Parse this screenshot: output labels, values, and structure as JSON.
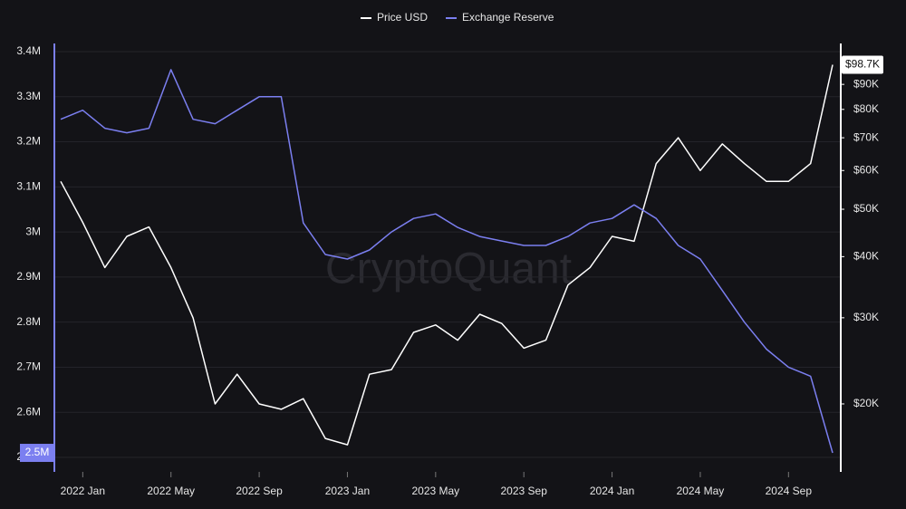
{
  "chart_data": {
    "type": "line",
    "watermark": "CryptoQuant",
    "grid": true,
    "x": [
      "2021-12",
      "2022-01",
      "2022-02",
      "2022-03",
      "2022-04",
      "2022-05",
      "2022-06",
      "2022-07",
      "2022-08",
      "2022-09",
      "2022-10",
      "2022-11",
      "2022-12",
      "2023-01",
      "2023-02",
      "2023-03",
      "2023-04",
      "2023-05",
      "2023-06",
      "2023-07",
      "2023-08",
      "2023-09",
      "2023-10",
      "2023-11",
      "2023-12",
      "2024-01",
      "2024-02",
      "2024-03",
      "2024-04",
      "2024-05",
      "2024-06",
      "2024-07",
      "2024-08",
      "2024-09",
      "2024-10",
      "2024-11"
    ],
    "xlim": [
      "2021-12",
      "2024-11"
    ],
    "xticks": [
      {
        "value": "2022-01",
        "label": "2022 Jan"
      },
      {
        "value": "2022-05",
        "label": "2022 May"
      },
      {
        "value": "2022-09",
        "label": "2022 Sep"
      },
      {
        "value": "2023-01",
        "label": "2023 Jan"
      },
      {
        "value": "2023-05",
        "label": "2023 May"
      },
      {
        "value": "2023-09",
        "label": "2023 Sep"
      },
      {
        "value": "2024-01",
        "label": "2024 Jan"
      },
      {
        "value": "2024-05",
        "label": "2024 May"
      },
      {
        "value": "2024-09",
        "label": "2024 Sep"
      }
    ],
    "ylim": [
      2.5,
      3.4
    ],
    "yticks": [
      {
        "value": 2.5,
        "label": "2.5M"
      },
      {
        "value": 2.6,
        "label": "2.6M"
      },
      {
        "value": 2.7,
        "label": "2.7M"
      },
      {
        "value": 2.8,
        "label": "2.8M"
      },
      {
        "value": 2.9,
        "label": "2.9M"
      },
      {
        "value": 3,
        "label": "3M"
      },
      {
        "value": 3.1,
        "label": "3.1M"
      },
      {
        "value": 3.2,
        "label": "3.2M"
      },
      {
        "value": 3.3,
        "label": "3.3M"
      },
      {
        "value": 3.4,
        "label": "3.4M"
      }
    ],
    "y2_log": true,
    "y2lim": [
      15550,
      105000
    ],
    "y2ticks": [
      {
        "value": 20000,
        "label": "$20K"
      },
      {
        "value": 30000,
        "label": "$30K"
      },
      {
        "value": 40000,
        "label": "$40K"
      },
      {
        "value": 50000,
        "label": "$50K"
      },
      {
        "value": 60000,
        "label": "$60K"
      },
      {
        "value": 70000,
        "label": "$70K"
      },
      {
        "value": 80000,
        "label": "$80K"
      },
      {
        "value": 90000,
        "label": "$90K"
      }
    ],
    "series": [
      {
        "name": "Price USD",
        "color": "#ffffff",
        "axis": "y2",
        "end_label": "$98.7K",
        "values": [
          57000,
          47000,
          38000,
          44000,
          46000,
          38000,
          30000,
          20000,
          23000,
          20000,
          19500,
          20500,
          17000,
          16500,
          23000,
          23500,
          28000,
          29000,
          27000,
          30500,
          29200,
          26000,
          27000,
          35000,
          38000,
          44000,
          43000,
          62000,
          70000,
          60000,
          68000,
          62000,
          57000,
          57000,
          62000,
          98700
        ]
      },
      {
        "name": "Exchange Reserve",
        "color": "#7b7ff0",
        "axis": "y",
        "end_label": "2.5M",
        "values": [
          3.25,
          3.27,
          3.23,
          3.22,
          3.23,
          3.36,
          3.25,
          3.24,
          3.27,
          3.3,
          3.3,
          3.02,
          2.95,
          2.94,
          2.96,
          3.0,
          3.03,
          3.04,
          3.01,
          2.99,
          2.98,
          2.97,
          2.97,
          2.99,
          3.02,
          3.03,
          3.06,
          3.03,
          2.97,
          2.94,
          2.87,
          2.8,
          2.74,
          2.7,
          2.68,
          2.51
        ]
      }
    ]
  }
}
